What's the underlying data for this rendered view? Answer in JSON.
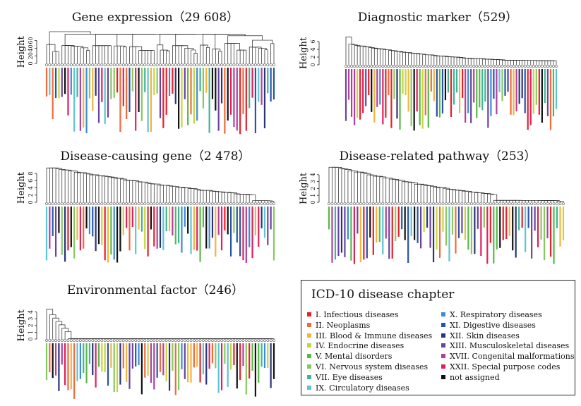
{
  "chart_data": [
    {
      "type": "dendrogram",
      "title": "Gene expression（29 608）",
      "ylabel": "Height",
      "yticks": [
        0,
        20,
        40,
        60
      ],
      "ylim": [
        0,
        85
      ],
      "n_leaves": 75
    },
    {
      "type": "dendrogram",
      "title": "Diagnostic marker（529）",
      "ylabel": "Height",
      "yticks": [
        0,
        2,
        4,
        6
      ],
      "ylim": [
        0,
        8
      ],
      "n_leaves": 75
    },
    {
      "type": "dendrogram",
      "title": "Disease-causing gene（2 478）",
      "ylabel": "Height",
      "yticks": [
        0,
        2,
        4,
        6,
        8
      ],
      "ylim": [
        0,
        9
      ],
      "n_leaves": 75
    },
    {
      "type": "dendrogram",
      "title": "Disease-related pathway（253）",
      "ylabel": "Height",
      "yticks": [
        0,
        1,
        2,
        3,
        4
      ],
      "ylim": [
        0,
        4.8
      ],
      "n_leaves": 75
    },
    {
      "type": "dendrogram",
      "title": "Environmental factor（246）",
      "ylabel": "Height",
      "yticks": [
        0,
        1,
        2,
        3,
        4
      ],
      "ylim": [
        0,
        5
      ],
      "n_leaves": 75
    }
  ],
  "legend": {
    "title": "ICD-10 disease chapter",
    "items": [
      {
        "label": "I. Infectious diseases",
        "color": "#e8202a"
      },
      {
        "label": "II. Neoplasms",
        "color": "#f06a3a"
      },
      {
        "label": "III. Blood & Immune diseases",
        "color": "#f4b43c"
      },
      {
        "label": "IV. Endocrine diseases",
        "color": "#c8d43c"
      },
      {
        "label": "V. Mental disorders",
        "color": "#58b848"
      },
      {
        "label": "VI. Nervous system diseases",
        "color": "#88c860"
      },
      {
        "label": "VII. Eye diseases",
        "color": "#40b494"
      },
      {
        "label": "IX. Circulatory diseases",
        "color": "#5cc4d4"
      },
      {
        "label": "X. Respiratory diseases",
        "color": "#3a8cd4"
      },
      {
        "label": "XI. Digestive diseases",
        "color": "#2854a8"
      },
      {
        "label": "XII. Skin diseases",
        "color": "#2a3478"
      },
      {
        "label": "XIII. Musculoskeletal diseases",
        "color": "#6844a0"
      },
      {
        "label": "XVII. Congenital malformations",
        "color": "#b040a0"
      },
      {
        "label": "XXII. Special purpose codes",
        "color": "#e0205c"
      },
      {
        "label": "not assigned",
        "color": "#111111"
      }
    ]
  }
}
